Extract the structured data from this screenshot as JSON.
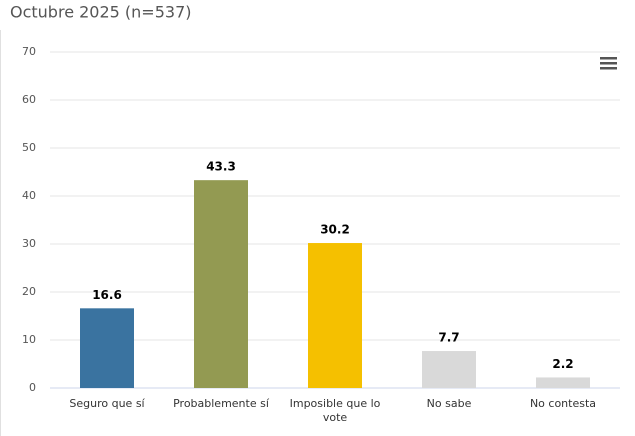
{
  "chart_data": {
    "type": "bar",
    "title": "Octubre 2025 (n=537)",
    "categories": [
      "Seguro que sí",
      "Probablemente sí",
      "Imposible que lo vote",
      "No sabe",
      "No contesta"
    ],
    "values": [
      16.6,
      43.3,
      30.2,
      7.7,
      2.2
    ],
    "colors": [
      "#3a73a0",
      "#939a52",
      "#f5c000",
      "#d9d9d9",
      "#d9d9d9"
    ],
    "ylim": [
      0,
      70
    ],
    "yticks": [
      0,
      10,
      20,
      30,
      40,
      50,
      60,
      70
    ],
    "grid": true
  }
}
